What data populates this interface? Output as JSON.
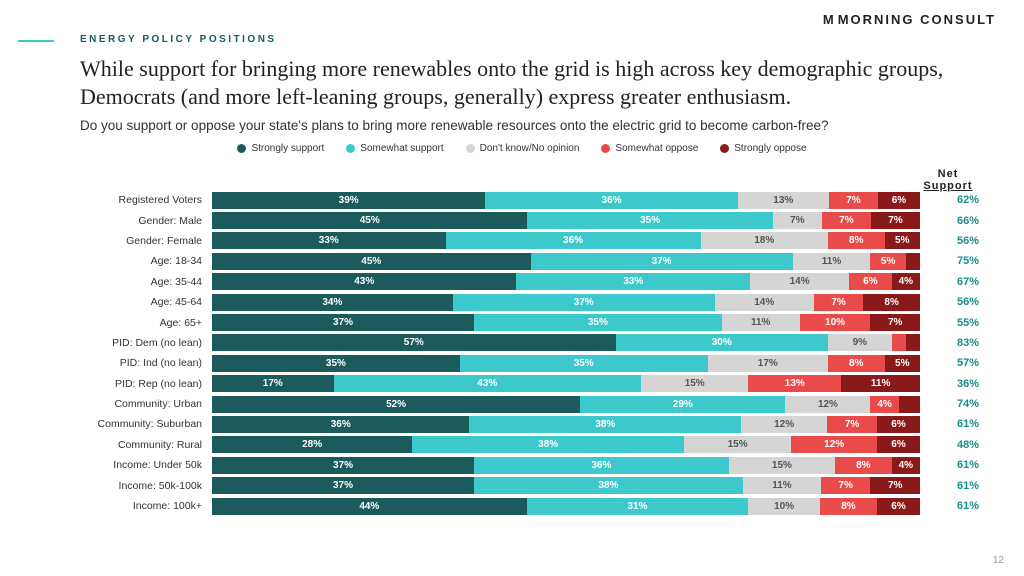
{
  "brand": "MORNING CONSULT",
  "category": "ENERGY POLICY POSITIONS",
  "headline": "While support for bringing more renewables onto the grid is high across key demographic groups, Democrats (and more left-leaning groups, generally) express greater enthusiasm.",
  "subhead": "Do you support or oppose your state's plans to bring more renewable resources onto the electric grid to become carbon-free?",
  "net_header_line1": "Net",
  "net_header_line2": "Support",
  "page_number": "12",
  "legend": [
    {
      "label": "Strongly support",
      "color": "#1b5b5c"
    },
    {
      "label": "Somewhat support",
      "color": "#3dc9cb"
    },
    {
      "label": "Don't know/No opinion",
      "color": "#d5d5d5"
    },
    {
      "label": "Somewhat oppose",
      "color": "#e94b4b"
    },
    {
      "label": "Strongly oppose",
      "color": "#8a1a1a"
    }
  ],
  "seg_text_colors": [
    "#ffffff",
    "#ffffff",
    "#555555",
    "#ffffff",
    "#ffffff"
  ],
  "rows": [
    {
      "label": "Registered Voters",
      "values": [
        39,
        36,
        13,
        7,
        6
      ],
      "net": "62%"
    },
    {
      "label": "Gender: Male",
      "values": [
        45,
        35,
        7,
        7,
        7
      ],
      "net": "66%"
    },
    {
      "label": "Gender: Female",
      "values": [
        33,
        36,
        18,
        8,
        5
      ],
      "net": "56%"
    },
    {
      "label": "Age: 18-34",
      "values": [
        45,
        37,
        11,
        5,
        2
      ],
      "net": "75%"
    },
    {
      "label": "Age: 35-44",
      "values": [
        43,
        33,
        14,
        6,
        4
      ],
      "net": "67%"
    },
    {
      "label": "Age: 45-64",
      "values": [
        34,
        37,
        14,
        7,
        8
      ],
      "net": "56%"
    },
    {
      "label": "Age: 65+",
      "values": [
        37,
        35,
        11,
        10,
        7
      ],
      "net": "55%"
    },
    {
      "label": "PID: Dem (no lean)",
      "values": [
        57,
        30,
        9,
        2,
        2
      ],
      "net": "83%"
    },
    {
      "label": "PID: Ind (no lean)",
      "values": [
        35,
        35,
        17,
        8,
        5
      ],
      "net": "57%"
    },
    {
      "label": "PID: Rep (no lean)",
      "values": [
        17,
        43,
        15,
        13,
        11
      ],
      "net": "36%"
    },
    {
      "label": "Community: Urban",
      "values": [
        52,
        29,
        12,
        4,
        3
      ],
      "net": "74%"
    },
    {
      "label": "Community: Suburban",
      "values": [
        36,
        38,
        12,
        7,
        6
      ],
      "net": "61%"
    },
    {
      "label": "Community: Rural",
      "values": [
        28,
        38,
        15,
        12,
        6
      ],
      "net": "48%"
    },
    {
      "label": "Income: Under 50k",
      "values": [
        37,
        36,
        15,
        8,
        4
      ],
      "net": "61%"
    },
    {
      "label": "Income: 50k-100k",
      "values": [
        37,
        38,
        11,
        7,
        7
      ],
      "net": "61%"
    },
    {
      "label": "Income: 100k+",
      "values": [
        44,
        31,
        10,
        8,
        6
      ],
      "net": "61%"
    }
  ],
  "min_label_pct": 4
}
